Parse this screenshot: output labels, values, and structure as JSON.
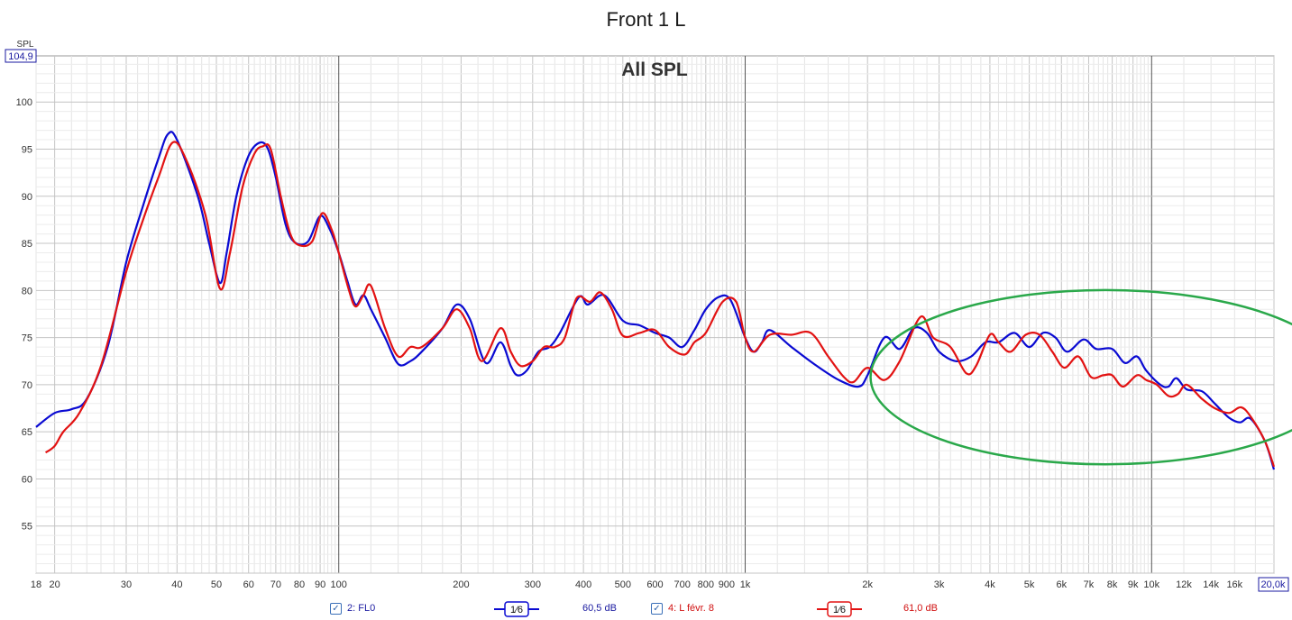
{
  "window_title": "Front 1 L",
  "chart_data": {
    "type": "line",
    "title": "All SPL",
    "ylabel": "SPL",
    "x_scale": "log",
    "xlim": [
      18,
      20000
    ],
    "ylim": [
      50,
      104.9
    ],
    "ymax_box": "104,9",
    "xmax_box": "20,0k",
    "grid": true,
    "y_ticks": [
      55,
      60,
      65,
      70,
      75,
      80,
      85,
      90,
      95,
      100
    ],
    "x_ticks": [
      {
        "v": 18,
        "label": "18"
      },
      {
        "v": 20,
        "label": "20"
      },
      {
        "v": 30,
        "label": "30"
      },
      {
        "v": 40,
        "label": "40"
      },
      {
        "v": 50,
        "label": "50"
      },
      {
        "v": 60,
        "label": "60"
      },
      {
        "v": 70,
        "label": "70"
      },
      {
        "v": 80,
        "label": "80"
      },
      {
        "v": 90,
        "label": "90"
      },
      {
        "v": 100,
        "label": "100"
      },
      {
        "v": 200,
        "label": "200"
      },
      {
        "v": 300,
        "label": "300"
      },
      {
        "v": 400,
        "label": "400"
      },
      {
        "v": 500,
        "label": "500"
      },
      {
        "v": 600,
        "label": "600"
      },
      {
        "v": 700,
        "label": "700"
      },
      {
        "v": 800,
        "label": "800"
      },
      {
        "v": 900,
        "label": "900"
      },
      {
        "v": 1000,
        "label": "1k"
      },
      {
        "v": 2000,
        "label": "2k"
      },
      {
        "v": 3000,
        "label": "3k"
      },
      {
        "v": 4000,
        "label": "4k"
      },
      {
        "v": 5000,
        "label": "5k"
      },
      {
        "v": 6000,
        "label": "6k"
      },
      {
        "v": 7000,
        "label": "7k"
      },
      {
        "v": 8000,
        "label": "8k"
      },
      {
        "v": 9000,
        "label": "9k"
      },
      {
        "v": 10000,
        "label": "10k"
      },
      {
        "v": 12000,
        "label": "12k"
      },
      {
        "v": 14000,
        "label": "14k"
      },
      {
        "v": 16000,
        "label": "16k"
      }
    ],
    "series": [
      {
        "name": "2: FL0",
        "color": "#0a0ad2",
        "points": [
          [
            18,
            65.5
          ],
          [
            20,
            67
          ],
          [
            22,
            67.4
          ],
          [
            24,
            68.5
          ],
          [
            27,
            74
          ],
          [
            30,
            83
          ],
          [
            33,
            89
          ],
          [
            36,
            94
          ],
          [
            38,
            96.6
          ],
          [
            40,
            96
          ],
          [
            45,
            90
          ],
          [
            48,
            85
          ],
          [
            51,
            80.8
          ],
          [
            53,
            84
          ],
          [
            56,
            90
          ],
          [
            60,
            94.3
          ],
          [
            64,
            95.7
          ],
          [
            67,
            95
          ],
          [
            70,
            92
          ],
          [
            74,
            87
          ],
          [
            78,
            85.1
          ],
          [
            84,
            85.2
          ],
          [
            90,
            87.9
          ],
          [
            95,
            86.5
          ],
          [
            100,
            84
          ],
          [
            105,
            81
          ],
          [
            110,
            78.5
          ],
          [
            115,
            79.5
          ],
          [
            120,
            78
          ],
          [
            130,
            75
          ],
          [
            140,
            72.2
          ],
          [
            150,
            72.5
          ],
          [
            160,
            73.5
          ],
          [
            180,
            76
          ],
          [
            195,
            78.5
          ],
          [
            210,
            77
          ],
          [
            230,
            72.3
          ],
          [
            250,
            74.5
          ],
          [
            265,
            72
          ],
          [
            275,
            71
          ],
          [
            290,
            71.5
          ],
          [
            310,
            73.5
          ],
          [
            330,
            74
          ],
          [
            350,
            75.5
          ],
          [
            390,
            79.3
          ],
          [
            410,
            78.5
          ],
          [
            450,
            79.5
          ],
          [
            500,
            76.8
          ],
          [
            550,
            76.3
          ],
          [
            600,
            75.5
          ],
          [
            650,
            75
          ],
          [
            700,
            74
          ],
          [
            750,
            75.8
          ],
          [
            800,
            78
          ],
          [
            860,
            79.3
          ],
          [
            920,
            79
          ],
          [
            1000,
            75
          ],
          [
            1050,
            73.5
          ],
          [
            1100,
            74.5
          ],
          [
            1150,
            75.8
          ],
          [
            1300,
            74
          ],
          [
            1500,
            72
          ],
          [
            1700,
            70.5
          ],
          [
            1900,
            69.8
          ],
          [
            2000,
            71
          ],
          [
            2200,
            75
          ],
          [
            2400,
            73.8
          ],
          [
            2600,
            76
          ],
          [
            2800,
            75.5
          ],
          [
            3000,
            73.5
          ],
          [
            3300,
            72.5
          ],
          [
            3600,
            73
          ],
          [
            3900,
            74.5
          ],
          [
            4200,
            74.5
          ],
          [
            4600,
            75.5
          ],
          [
            5000,
            74
          ],
          [
            5400,
            75.5
          ],
          [
            5800,
            75
          ],
          [
            6200,
            73.5
          ],
          [
            6800,
            74.8
          ],
          [
            7300,
            73.8
          ],
          [
            8000,
            73.8
          ],
          [
            8600,
            72.3
          ],
          [
            9200,
            73
          ],
          [
            9700,
            71.5
          ],
          [
            10500,
            70
          ],
          [
            11000,
            69.8
          ],
          [
            11500,
            70.7
          ],
          [
            12200,
            69.5
          ],
          [
            13300,
            69.3
          ],
          [
            14300,
            68
          ],
          [
            15500,
            66.5
          ],
          [
            16500,
            66
          ],
          [
            17500,
            66.4
          ],
          [
            19000,
            64
          ],
          [
            20000,
            61
          ]
        ]
      },
      {
        "name": "4: L févr. 8",
        "color": "#e21212",
        "points": [
          [
            19,
            62.8
          ],
          [
            20,
            63.5
          ],
          [
            21,
            65
          ],
          [
            23,
            67
          ],
          [
            26,
            72
          ],
          [
            30,
            82
          ],
          [
            33,
            87.5
          ],
          [
            36,
            92
          ],
          [
            39,
            95.7
          ],
          [
            42,
            94
          ],
          [
            47,
            88
          ],
          [
            51,
            80.2
          ],
          [
            54,
            84
          ],
          [
            58,
            91
          ],
          [
            62,
            94.5
          ],
          [
            65,
            95.3
          ],
          [
            68,
            95
          ],
          [
            72,
            90
          ],
          [
            76,
            86
          ],
          [
            80,
            84.8
          ],
          [
            86,
            85.2
          ],
          [
            91,
            88.2
          ],
          [
            96,
            86.5
          ],
          [
            100,
            84
          ],
          [
            106,
            80
          ],
          [
            110,
            78.3
          ],
          [
            115,
            79.5
          ],
          [
            120,
            80.5
          ],
          [
            130,
            76
          ],
          [
            140,
            73
          ],
          [
            150,
            74
          ],
          [
            160,
            74
          ],
          [
            180,
            76
          ],
          [
            195,
            78
          ],
          [
            210,
            76
          ],
          [
            225,
            72.5
          ],
          [
            250,
            76
          ],
          [
            265,
            73.5
          ],
          [
            280,
            72
          ],
          [
            300,
            72.5
          ],
          [
            320,
            74
          ],
          [
            340,
            74
          ],
          [
            360,
            75
          ],
          [
            385,
            79.2
          ],
          [
            415,
            78.8
          ],
          [
            440,
            79.8
          ],
          [
            470,
            78
          ],
          [
            500,
            75.2
          ],
          [
            550,
            75.5
          ],
          [
            600,
            75.8
          ],
          [
            650,
            74
          ],
          [
            710,
            73.2
          ],
          [
            750,
            74.5
          ],
          [
            800,
            75.5
          ],
          [
            880,
            78.8
          ],
          [
            950,
            78.8
          ],
          [
            1000,
            75
          ],
          [
            1050,
            73.5
          ],
          [
            1150,
            75.3
          ],
          [
            1300,
            75.3
          ],
          [
            1450,
            75.5
          ],
          [
            1600,
            73
          ],
          [
            1750,
            70.8
          ],
          [
            1850,
            70.3
          ],
          [
            2000,
            71.8
          ],
          [
            2200,
            70.5
          ],
          [
            2400,
            72.5
          ],
          [
            2700,
            77.2
          ],
          [
            2900,
            75
          ],
          [
            3200,
            74
          ],
          [
            3500,
            71.2
          ],
          [
            3700,
            72
          ],
          [
            4000,
            75.3
          ],
          [
            4200,
            74.5
          ],
          [
            4500,
            73.5
          ],
          [
            4900,
            75.3
          ],
          [
            5300,
            75.3
          ],
          [
            5700,
            73.5
          ],
          [
            6100,
            71.8
          ],
          [
            6600,
            73
          ],
          [
            7100,
            70.8
          ],
          [
            7600,
            71
          ],
          [
            8000,
            71
          ],
          [
            8500,
            69.8
          ],
          [
            9200,
            71
          ],
          [
            9700,
            70.5
          ],
          [
            10300,
            70
          ],
          [
            11000,
            68.8
          ],
          [
            11600,
            69
          ],
          [
            12200,
            70
          ],
          [
            13300,
            68.5
          ],
          [
            14300,
            67.5
          ],
          [
            15500,
            67
          ],
          [
            16600,
            67.6
          ],
          [
            17600,
            66.5
          ],
          [
            19000,
            64
          ],
          [
            20000,
            61.3
          ]
        ]
      }
    ],
    "annotation": {
      "type": "ellipse",
      "color": "#2aa84a",
      "cx_freq": 7700,
      "cy_value": 70.8,
      "rx_octaves": 1.92,
      "ry_db": 9.25
    }
  },
  "legend": {
    "item1": {
      "label": "2: FL0",
      "smoothing": "1⁄6",
      "value": "60,5 dB",
      "color": "#0a0ad2"
    },
    "item2": {
      "label": "4: L févr. 8",
      "smoothing": "1⁄6",
      "value": "61,0 dB",
      "color": "#e21212"
    },
    "check_glyph": "✓"
  }
}
